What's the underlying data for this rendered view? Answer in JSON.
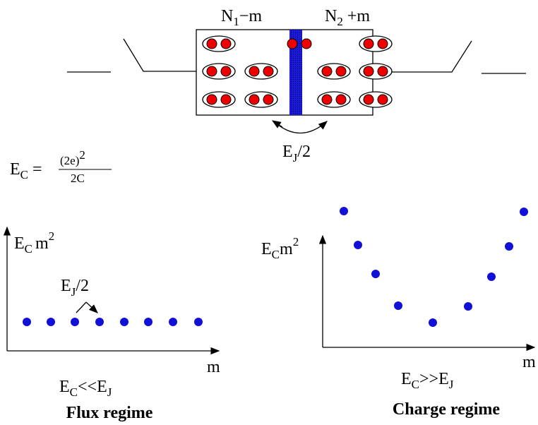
{
  "junction": {
    "left_label": {
      "base": "N",
      "sub": "1",
      "rest": "−m"
    },
    "right_label": {
      "base": "N",
      "sub": "2",
      "rest": " +m"
    },
    "coupling": {
      "base": "E",
      "sub": "J",
      "rest": "/2"
    }
  },
  "charging_energy": {
    "lhs": "E",
    "lhs_sub": "C",
    "eq": "=",
    "numerator": "(2e)",
    "numerator_sup": "2",
    "denominator": "2C"
  },
  "flux_panel": {
    "y_label": {
      "base": "E",
      "sub": "C",
      "rest": "m",
      "sup": "2"
    },
    "coupling": {
      "base": "E",
      "sub": "J",
      "rest": "/2"
    },
    "x_label": "m",
    "condition": {
      "a": "E",
      "a_sub": "C",
      "op": "<<",
      "b": "E",
      "b_sub": "J"
    },
    "title": "Flux regime"
  },
  "charge_panel": {
    "y_label": {
      "base": "E",
      "sub": "C",
      "rest": "m",
      "sup": "2"
    },
    "x_label": "m",
    "condition": {
      "a": "E",
      "a_sub": "C",
      "op": ">>",
      "b": "E",
      "b_sub": "J"
    },
    "title": "Charge regime"
  }
}
